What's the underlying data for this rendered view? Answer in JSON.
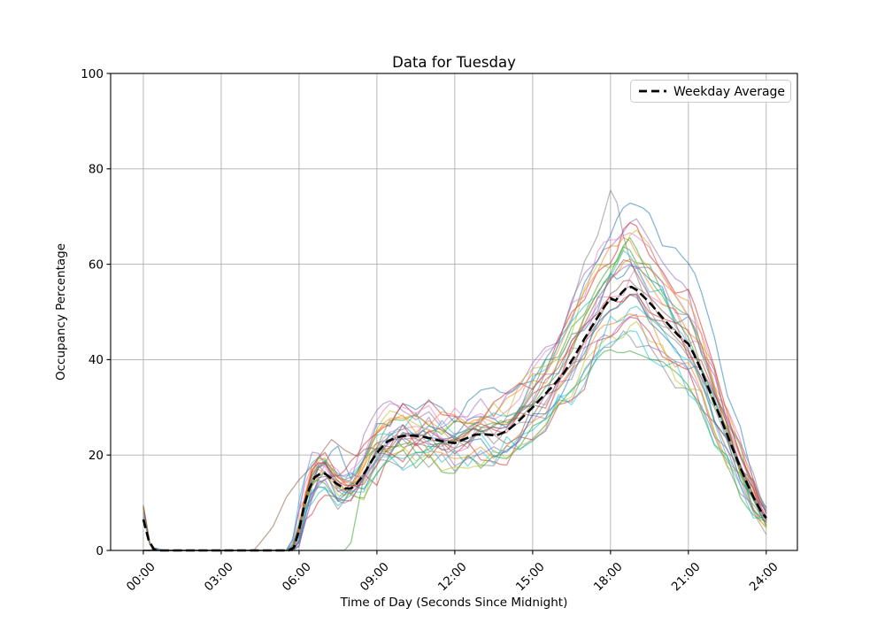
{
  "chart_data": {
    "type": "line",
    "title": "Data for Tuesday",
    "xlabel": "Time of Day (Seconds Since Midnight)",
    "ylabel": "Occupancy Percentage",
    "xlim_hours": [
      -1.26,
      25.2
    ],
    "ylim": [
      0,
      100
    ],
    "grid": true,
    "grid_color": "#b0b0b0",
    "background": "#ffffff",
    "x_ticks": [
      {
        "h": 0,
        "label": "00:00"
      },
      {
        "h": 3,
        "label": "03:00"
      },
      {
        "h": 6,
        "label": "06:00"
      },
      {
        "h": 9,
        "label": "09:00"
      },
      {
        "h": 12,
        "label": "12:00"
      },
      {
        "h": 15,
        "label": "15:00"
      },
      {
        "h": 18,
        "label": "18:00"
      },
      {
        "h": 21,
        "label": "21:00"
      },
      {
        "h": 24,
        "label": "24:00"
      }
    ],
    "y_ticks": [
      {
        "v": 0,
        "label": "0"
      },
      {
        "v": 20,
        "label": "20"
      },
      {
        "v": 40,
        "label": "40"
      },
      {
        "v": 60,
        "label": "60"
      },
      {
        "v": 80,
        "label": "80"
      },
      {
        "v": 100,
        "label": "100"
      }
    ],
    "legend": {
      "label": "Weekday Average",
      "position": "upper right"
    },
    "average": {
      "name": "Weekday Average",
      "color": "#000000",
      "width": 2.6,
      "dash": [
        10,
        4.5
      ],
      "points": [
        [
          0,
          6.5
        ],
        [
          0.15,
          3.2
        ],
        [
          0.3,
          0.4
        ],
        [
          0.5,
          0
        ],
        [
          5.75,
          0
        ],
        [
          5.9,
          1.8
        ],
        [
          6.05,
          5.5
        ],
        [
          6.2,
          9.5
        ],
        [
          6.4,
          13
        ],
        [
          6.6,
          15.3
        ],
        [
          6.9,
          16.4
        ],
        [
          7.1,
          15.8
        ],
        [
          7.4,
          14.2
        ],
        [
          7.7,
          13.1
        ],
        [
          7.95,
          12.8
        ],
        [
          8.2,
          13.8
        ],
        [
          8.5,
          16
        ],
        [
          8.8,
          18.8
        ],
        [
          9.1,
          21.2
        ],
        [
          9.4,
          22.8
        ],
        [
          9.7,
          23.6
        ],
        [
          10,
          24
        ],
        [
          10.4,
          24.1
        ],
        [
          10.8,
          23.8
        ],
        [
          11.2,
          23.3
        ],
        [
          11.6,
          22.8
        ],
        [
          12,
          22.5
        ],
        [
          12.4,
          23.4
        ],
        [
          12.8,
          24.3
        ],
        [
          13.2,
          24.3
        ],
        [
          13.6,
          24.1
        ],
        [
          14,
          25
        ],
        [
          14.4,
          26.8
        ],
        [
          14.7,
          28.4
        ],
        [
          15,
          30
        ],
        [
          15.4,
          32.3
        ],
        [
          15.8,
          34.6
        ],
        [
          16.2,
          37.2
        ],
        [
          16.6,
          40.6
        ],
        [
          17,
          44.4
        ],
        [
          17.4,
          48
        ],
        [
          17.8,
          51.4
        ],
        [
          18,
          52.8
        ],
        [
          18.2,
          52.4
        ],
        [
          18.45,
          54.2
        ],
        [
          18.7,
          55.5
        ],
        [
          18.95,
          54.9
        ],
        [
          19.2,
          53.6
        ],
        [
          19.5,
          52
        ],
        [
          19.8,
          50.1
        ],
        [
          20.1,
          48.2
        ],
        [
          20.4,
          46.3
        ],
        [
          20.7,
          44.6
        ],
        [
          21,
          43.3
        ],
        [
          21.25,
          40.8
        ],
        [
          21.5,
          37.6
        ],
        [
          21.75,
          34.4
        ],
        [
          22,
          31
        ],
        [
          22.25,
          27.6
        ],
        [
          22.5,
          24.2
        ],
        [
          22.75,
          20.8
        ],
        [
          23,
          17.4
        ],
        [
          23.25,
          14.2
        ],
        [
          23.5,
          11.2
        ],
        [
          23.75,
          8.6
        ],
        [
          24,
          6.8
        ]
      ]
    },
    "day_lines": {
      "alpha": 0.55,
      "width": 1.25,
      "palette": [
        "#1f77b4",
        "#ff7f0e",
        "#2ca02c",
        "#d62728",
        "#9467bd",
        "#8c564b",
        "#e377c2",
        "#7f7f7f",
        "#bcbd22",
        "#17becf"
      ],
      "generated": [
        {
          "c": "#1f77b4",
          "s": 11,
          "k": 1.08,
          "a": 3.0,
          "v": 0,
          "h": -0.05
        },
        {
          "c": "#ff7f0e",
          "s": 12,
          "k": 0.92,
          "a": 3.2,
          "v": 8.5,
          "h": 0.1
        },
        {
          "c": "#2ca02c",
          "s": 13,
          "k": 1.15,
          "a": 2.6,
          "v": 0,
          "h": 0
        },
        {
          "c": "#d62728",
          "s": 14,
          "k": 0.85,
          "a": 3.5,
          "v": 9.0,
          "h": -0.1
        },
        {
          "c": "#9467bd",
          "s": 15,
          "k": 1.25,
          "a": 2.8,
          "v": 0,
          "h": 0.15
        },
        {
          "c": "#8c564b",
          "s": 16,
          "k": 0.95,
          "a": 2.4,
          "v": 0,
          "h": 0.05
        },
        {
          "c": "#e377c2",
          "s": 17,
          "k": 1.05,
          "a": 3.4,
          "v": 7.5,
          "h": -0.15
        },
        {
          "c": "#7f7f7f",
          "s": 18,
          "k": 0.8,
          "a": 2.6,
          "v": 0,
          "h": 0.1
        },
        {
          "c": "#bcbd22",
          "s": 19,
          "k": 1.18,
          "a": 3.1,
          "v": 0,
          "h": 0
        },
        {
          "c": "#17becf",
          "s": 20,
          "k": 0.9,
          "a": 2.9,
          "v": 9.5,
          "h": -0.05
        },
        {
          "c": "#1f77b4",
          "s": 21,
          "k": 1.3,
          "a": 3.3,
          "v": 0,
          "h": -0.2
        },
        {
          "c": "#ff7f0e",
          "s": 22,
          "k": 1.12,
          "a": 2.7,
          "v": 8.0,
          "h": 0.05
        },
        {
          "c": "#2ca02c",
          "s": 23,
          "k": 0.78,
          "a": 2.5,
          "v": 0,
          "h": 0.1
        },
        {
          "c": "#d62728",
          "s": 24,
          "k": 1.2,
          "a": 3.6,
          "v": 0,
          "h": 0
        },
        {
          "c": "#9467bd",
          "s": 25,
          "k": 0.88,
          "a": 2.8,
          "v": 7.0,
          "h": 0.2
        },
        {
          "c": "#8c564b",
          "s": 26,
          "k": 1.02,
          "a": 2.3,
          "v": 0,
          "h": -0.1
        },
        {
          "c": "#e377c2",
          "s": 27,
          "k": 1.22,
          "a": 3.0,
          "v": 0,
          "h": 0.1
        },
        {
          "c": "#7f7f7f",
          "s": 28,
          "k": 0.97,
          "a": 2.6,
          "v": 0,
          "h": -0.05
        },
        {
          "c": "#bcbd22",
          "s": 29,
          "k": 0.84,
          "a": 3.2,
          "v": 8.8,
          "h": 0
        },
        {
          "c": "#17becf",
          "s": 30,
          "k": 1.1,
          "a": 2.9,
          "v": 0,
          "h": 0.15
        },
        {
          "c": "#1f77b4",
          "s": 31,
          "k": 0.93,
          "a": 3.1,
          "v": 0,
          "h": -0.1
        },
        {
          "c": "#ff7f0e",
          "s": 32,
          "k": 1.18,
          "a": 2.5,
          "v": 9.2,
          "h": 0
        },
        {
          "c": "#d62728",
          "s": 33,
          "k": 1.0,
          "a": 3.4,
          "v": 0,
          "h": 0.05
        },
        {
          "c": "#9467bd",
          "s": 34,
          "k": 1.08,
          "a": 2.7,
          "v": 0,
          "h": -0.15
        },
        {
          "c": "#17becf",
          "s": 35,
          "k": 0.82,
          "a": 3.0,
          "v": 7.8,
          "h": 0.1
        }
      ],
      "keypoint_series": [
        {
          "name": "gray-high-peak",
          "c": "#7f7f7f",
          "s": 41,
          "a": 1.2,
          "points": [
            [
              0,
              8
            ],
            [
              0.3,
              0
            ],
            [
              5.8,
              0
            ],
            [
              6.3,
              12
            ],
            [
              6.8,
              18
            ],
            [
              7.3,
              14
            ],
            [
              7.8,
              12
            ],
            [
              8.3,
              17
            ],
            [
              8.8,
              21
            ],
            [
              9.3,
              23
            ],
            [
              9.8,
              25
            ],
            [
              10.3,
              22
            ],
            [
              10.8,
              24
            ],
            [
              11.3,
              22
            ],
            [
              11.8,
              21
            ],
            [
              12.3,
              24
            ],
            [
              12.8,
              26
            ],
            [
              13.3,
              25
            ],
            [
              13.8,
              26
            ],
            [
              14.3,
              29
            ],
            [
              14.8,
              31
            ],
            [
              15.3,
              35
            ],
            [
              15.8,
              40
            ],
            [
              16.2,
              47
            ],
            [
              16.6,
              53
            ],
            [
              17,
              60
            ],
            [
              17.4,
              65
            ],
            [
              17.7,
              70
            ],
            [
              17.9,
              73
            ],
            [
              18.05,
              76
            ],
            [
              18.2,
              72
            ],
            [
              18.35,
              74
            ],
            [
              18.5,
              66
            ],
            [
              18.8,
              60
            ],
            [
              19.2,
              55
            ],
            [
              19.6,
              50
            ],
            [
              20,
              47
            ],
            [
              20.4,
              44
            ],
            [
              20.8,
              42
            ],
            [
              21.2,
              39
            ],
            [
              21.6,
              34
            ],
            [
              22,
              29
            ],
            [
              22.4,
              24
            ],
            [
              22.8,
              18
            ],
            [
              23.2,
              13
            ],
            [
              23.6,
              8
            ],
            [
              24,
              4
            ]
          ]
        },
        {
          "name": "brown-early-riser",
          "c": "#8c564b",
          "s": 42,
          "a": 1.5,
          "points": [
            [
              0,
              9
            ],
            [
              0.3,
              0
            ],
            [
              4.3,
              0
            ],
            [
              7.2,
              24
            ],
            [
              7.7,
              21
            ],
            [
              8.2,
              19
            ],
            [
              8.7,
              22
            ],
            [
              9.2,
              23
            ],
            [
              9.7,
              21
            ],
            [
              10.2,
              24
            ],
            [
              10.7,
              26
            ],
            [
              11.2,
              23
            ],
            [
              11.7,
              22
            ],
            [
              12.2,
              25
            ],
            [
              12.7,
              27
            ],
            [
              13.2,
              25
            ],
            [
              13.7,
              26
            ],
            [
              14.2,
              28
            ],
            [
              14.7,
              30
            ],
            [
              15.2,
              33
            ],
            [
              15.7,
              36
            ],
            [
              16.2,
              40
            ],
            [
              16.7,
              45
            ],
            [
              17.2,
              50
            ],
            [
              17.7,
              55
            ],
            [
              18.2,
              60
            ],
            [
              18.6,
              63
            ],
            [
              19,
              58
            ],
            [
              19.4,
              54
            ],
            [
              19.8,
              50
            ],
            [
              20.2,
              48
            ],
            [
              20.6,
              45
            ],
            [
              21,
              43
            ],
            [
              21.4,
              38
            ],
            [
              21.8,
              33
            ],
            [
              22.2,
              28
            ],
            [
              22.6,
              23
            ],
            [
              23,
              18
            ],
            [
              23.4,
              13
            ],
            [
              23.8,
              9
            ],
            [
              24,
              7
            ]
          ]
        },
        {
          "name": "green-late-starter",
          "c": "#2ca02c",
          "s": 43,
          "a": 1.4,
          "points": [
            [
              0,
              0
            ],
            [
              7.9,
              0
            ],
            [
              8.1,
              4
            ],
            [
              8.4,
              13
            ],
            [
              8.7,
              19
            ],
            [
              9,
              21
            ],
            [
              9.4,
              19
            ],
            [
              9.8,
              22
            ],
            [
              10.2,
              24
            ],
            [
              10.6,
              21
            ],
            [
              11,
              20
            ],
            [
              11.4,
              23
            ],
            [
              11.8,
              22
            ],
            [
              12.2,
              24
            ],
            [
              12.6,
              26
            ],
            [
              13,
              24
            ],
            [
              13.4,
              25
            ],
            [
              13.8,
              27
            ],
            [
              14.2,
              26
            ],
            [
              14.6,
              29
            ],
            [
              15,
              31
            ],
            [
              15.5,
              34
            ],
            [
              16,
              38
            ],
            [
              16.5,
              43
            ],
            [
              17,
              48
            ],
            [
              17.5,
              53
            ],
            [
              18,
              58
            ],
            [
              18.4,
              62
            ],
            [
              18.8,
              65
            ],
            [
              19.2,
              60
            ],
            [
              19.6,
              55
            ],
            [
              20,
              52
            ],
            [
              20.4,
              49
            ],
            [
              20.8,
              46
            ],
            [
              21.2,
              42
            ],
            [
              21.6,
              37
            ],
            [
              22,
              31
            ],
            [
              22.4,
              26
            ],
            [
              22.8,
              20
            ],
            [
              23.2,
              15
            ],
            [
              23.6,
              10
            ],
            [
              24,
              5
            ]
          ]
        }
      ]
    }
  }
}
